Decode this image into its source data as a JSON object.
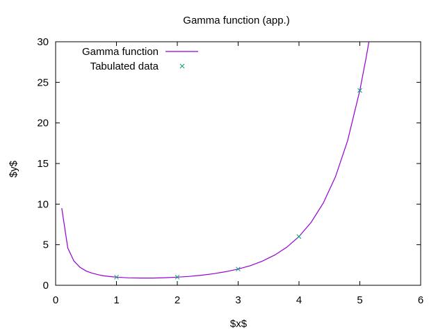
{
  "chart_data": {
    "type": "line",
    "title": "Gamma function (app.)",
    "xlabel": "$x$",
    "ylabel": "$y$",
    "xlim": [
      0,
      6
    ],
    "ylim": [
      0,
      30
    ],
    "xticks": [
      0,
      1,
      2,
      3,
      4,
      5,
      6
    ],
    "yticks": [
      0,
      5,
      10,
      15,
      20,
      25,
      30
    ],
    "grid": false,
    "legend_position": "top-left",
    "series": [
      {
        "name": "Gamma function",
        "kind": "line",
        "color": "#9400d3",
        "x": [
          0.1,
          0.2,
          0.3,
          0.4,
          0.5,
          0.6,
          0.7,
          0.8,
          0.9,
          1.0,
          1.2,
          1.4,
          1.6,
          1.8,
          2.0,
          2.2,
          2.4,
          2.6,
          2.8,
          3.0,
          3.2,
          3.4,
          3.6,
          3.8,
          4.0,
          4.2,
          4.4,
          4.6,
          4.8,
          5.0,
          5.1,
          5.15
        ],
        "y": [
          9.51,
          4.59,
          2.99,
          2.22,
          1.77,
          1.49,
          1.3,
          1.16,
          1.07,
          1.0,
          0.92,
          0.89,
          0.89,
          0.93,
          1.0,
          1.1,
          1.24,
          1.43,
          1.68,
          2.0,
          2.42,
          2.98,
          3.72,
          4.69,
          6.0,
          7.76,
          10.14,
          13.38,
          17.84,
          24.0,
          27.93,
          30.0
        ]
      },
      {
        "name": "Tabulated data",
        "kind": "scatter",
        "marker": "x",
        "color": "#009e73",
        "x": [
          1,
          2,
          3,
          4,
          5
        ],
        "y": [
          1,
          1,
          2,
          6,
          24
        ]
      }
    ]
  }
}
